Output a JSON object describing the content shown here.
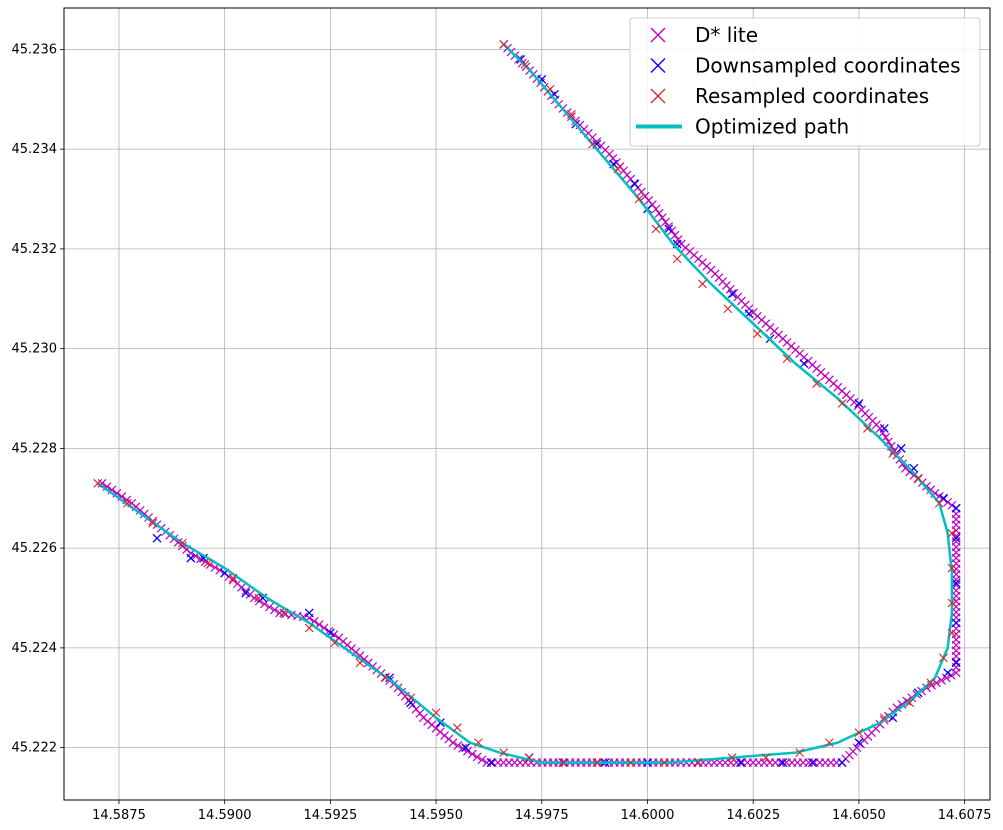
{
  "chart_data": {
    "type": "scatter",
    "xlim": [
      14.5862,
      14.6081
    ],
    "ylim": [
      45.22095,
      45.23683
    ],
    "xticks": [
      "14.5875",
      "14.5900",
      "14.5925",
      "14.5950",
      "14.5975",
      "14.6000",
      "14.6025",
      "14.6050",
      "14.6075"
    ],
    "yticks": [
      "45.222",
      "45.224",
      "45.226",
      "45.228",
      "45.230",
      "45.232",
      "45.234",
      "45.236"
    ],
    "grid": true,
    "legend_position": "top-right",
    "series": [
      {
        "name": "D* lite",
        "marker": "x",
        "color": "#bf00bf",
        "kind": "dense_markers",
        "points": [
          [
            14.5871,
            45.2273
          ],
          [
            14.5878,
            45.2269
          ],
          [
            14.5885,
            45.2264
          ],
          [
            14.5892,
            45.2259
          ],
          [
            14.59,
            45.2255
          ],
          [
            14.5907,
            45.225
          ],
          [
            14.5913,
            45.2247
          ],
          [
            14.592,
            45.2246
          ],
          [
            14.5927,
            45.2242
          ],
          [
            14.5934,
            45.2237
          ],
          [
            14.5941,
            45.2232
          ],
          [
            14.5947,
            45.2226
          ],
          [
            14.5954,
            45.2221
          ],
          [
            14.5962,
            45.2217
          ],
          [
            14.6,
            45.2217
          ],
          [
            14.6046,
            45.2217
          ],
          [
            14.6053,
            45.2223
          ],
          [
            14.6059,
            45.2228
          ],
          [
            14.6066,
            45.2232
          ],
          [
            14.6073,
            45.2235
          ],
          [
            14.6073,
            45.2245
          ],
          [
            14.6073,
            45.2258
          ],
          [
            14.6073,
            45.2268
          ],
          [
            14.6068,
            45.2271
          ],
          [
            14.6061,
            45.2276
          ],
          [
            14.6055,
            45.2284
          ],
          [
            14.6048,
            45.229
          ],
          [
            14.604,
            45.2296
          ],
          [
            14.6032,
            45.2302
          ],
          [
            14.6024,
            45.2308
          ],
          [
            14.6016,
            45.2315
          ],
          [
            14.6008,
            45.2321
          ],
          [
            14.6002,
            45.2328
          ],
          [
            14.5996,
            45.2334
          ],
          [
            14.5991,
            45.2339
          ],
          [
            14.5985,
            45.2344
          ],
          [
            14.5979,
            45.2349
          ],
          [
            14.5973,
            45.2355
          ],
          [
            14.5966,
            45.2361
          ]
        ]
      },
      {
        "name": "Downsampled coordinates",
        "marker": "x",
        "color": "#0000ff",
        "kind": "markers",
        "points": [
          [
            14.5884,
            45.2262
          ],
          [
            14.5892,
            45.2258
          ],
          [
            14.5895,
            45.2258
          ],
          [
            14.59,
            45.2255
          ],
          [
            14.5905,
            45.2251
          ],
          [
            14.5909,
            45.225
          ],
          [
            14.5914,
            45.2247
          ],
          [
            14.592,
            45.2247
          ],
          [
            14.5925,
            45.2243
          ],
          [
            14.5939,
            45.2234
          ],
          [
            14.5944,
            45.2229
          ],
          [
            14.5951,
            45.2225
          ],
          [
            14.5957,
            45.222
          ],
          [
            14.5963,
            45.2217
          ],
          [
            14.5972,
            45.2218
          ],
          [
            14.598,
            45.2217
          ],
          [
            14.599,
            45.2217
          ],
          [
            14.6,
            45.2217
          ],
          [
            14.6012,
            45.2217
          ],
          [
            14.6022,
            45.2217
          ],
          [
            14.6032,
            45.2217
          ],
          [
            14.6039,
            45.2217
          ],
          [
            14.6046,
            45.2217
          ],
          [
            14.605,
            45.2221
          ],
          [
            14.6058,
            45.2226
          ],
          [
            14.6064,
            45.2231
          ],
          [
            14.6071,
            45.2235
          ],
          [
            14.6073,
            45.2237
          ],
          [
            14.6073,
            45.2245
          ],
          [
            14.6073,
            45.2253
          ],
          [
            14.6073,
            45.2262
          ],
          [
            14.6073,
            45.2268
          ],
          [
            14.607,
            45.227
          ],
          [
            14.6063,
            45.2276
          ],
          [
            14.606,
            45.228
          ],
          [
            14.6056,
            45.2284
          ],
          [
            14.605,
            45.2289
          ],
          [
            14.6037,
            45.2297
          ],
          [
            14.6029,
            45.2302
          ],
          [
            14.6024,
            45.2307
          ],
          [
            14.602,
            45.2311
          ],
          [
            14.6007,
            45.2321
          ],
          [
            14.6005,
            45.2324
          ],
          [
            14.6,
            45.2328
          ],
          [
            14.5997,
            45.2333
          ],
          [
            14.5992,
            45.2337
          ],
          [
            14.5988,
            45.2341
          ],
          [
            14.5983,
            45.2345
          ],
          [
            14.5978,
            45.2351
          ],
          [
            14.5975,
            45.2354
          ],
          [
            14.597,
            45.2358
          ]
        ]
      },
      {
        "name": "Resampled coordinates",
        "marker": "x",
        "color": "#d62728",
        "kind": "markers",
        "points": [
          [
            14.587,
            45.2273
          ],
          [
            14.5877,
            45.2269
          ],
          [
            14.5883,
            45.2265
          ],
          [
            14.589,
            45.2261
          ],
          [
            14.5896,
            45.2257
          ],
          [
            14.5902,
            45.2254
          ],
          [
            14.5908,
            45.225
          ],
          [
            14.5914,
            45.2247
          ],
          [
            14.592,
            45.2244
          ],
          [
            14.5926,
            45.2241
          ],
          [
            14.5932,
            45.2237
          ],
          [
            14.5938,
            45.2234
          ],
          [
            14.5944,
            45.223
          ],
          [
            14.595,
            45.2227
          ],
          [
            14.5955,
            45.2224
          ],
          [
            14.596,
            45.2221
          ],
          [
            14.5966,
            45.2219
          ],
          [
            14.5972,
            45.2218
          ],
          [
            14.598,
            45.2217
          ],
          [
            14.5988,
            45.2217
          ],
          [
            14.5996,
            45.2217
          ],
          [
            14.6004,
            45.2217
          ],
          [
            14.6012,
            45.2217
          ],
          [
            14.602,
            45.2218
          ],
          [
            14.6028,
            45.2218
          ],
          [
            14.6036,
            45.2219
          ],
          [
            14.6043,
            45.2221
          ],
          [
            14.605,
            45.2223
          ],
          [
            14.6056,
            45.2226
          ],
          [
            14.6062,
            45.2229
          ],
          [
            14.6067,
            45.2233
          ],
          [
            14.607,
            45.2238
          ],
          [
            14.6072,
            45.2243
          ],
          [
            14.6072,
            45.2249
          ],
          [
            14.6072,
            45.2256
          ],
          [
            14.6072,
            45.2263
          ],
          [
            14.6069,
            45.2269
          ],
          [
            14.6064,
            45.2274
          ],
          [
            14.6058,
            45.2279
          ],
          [
            14.6052,
            45.2284
          ],
          [
            14.6046,
            45.2289
          ],
          [
            14.604,
            45.2293
          ],
          [
            14.6033,
            45.2298
          ],
          [
            14.6026,
            45.2303
          ],
          [
            14.6019,
            45.2308
          ],
          [
            14.6013,
            45.2313
          ],
          [
            14.6007,
            45.2318
          ],
          [
            14.6002,
            45.2324
          ],
          [
            14.5998,
            45.233
          ],
          [
            14.5993,
            45.2336
          ],
          [
            14.5987,
            45.2341
          ],
          [
            14.5982,
            45.2347
          ],
          [
            14.5977,
            45.2352
          ],
          [
            14.5971,
            45.2357
          ],
          [
            14.5966,
            45.2361
          ]
        ]
      },
      {
        "name": "Optimized path",
        "color": "#00bfbf",
        "kind": "line",
        "points": [
          [
            14.587,
            45.2273
          ],
          [
            14.588,
            45.2267
          ],
          [
            14.589,
            45.2261
          ],
          [
            14.59,
            45.2256
          ],
          [
            14.591,
            45.225
          ],
          [
            14.592,
            45.2245
          ],
          [
            14.593,
            45.2239
          ],
          [
            14.594,
            45.2233
          ],
          [
            14.595,
            45.2226
          ],
          [
            14.5958,
            45.2221
          ],
          [
            14.5965,
            45.2219
          ],
          [
            14.5975,
            45.2217
          ],
          [
            14.599,
            45.2217
          ],
          [
            14.6005,
            45.2217
          ],
          [
            14.602,
            45.2218
          ],
          [
            14.6035,
            45.2219
          ],
          [
            14.6045,
            45.2221
          ],
          [
            14.6055,
            45.2225
          ],
          [
            14.6063,
            45.223
          ],
          [
            14.6068,
            45.2234
          ],
          [
            14.6071,
            45.224
          ],
          [
            14.6072,
            45.2247
          ],
          [
            14.6072,
            45.2255
          ],
          [
            14.6071,
            45.2263
          ],
          [
            14.6069,
            45.2269
          ],
          [
            14.6063,
            45.2275
          ],
          [
            14.6055,
            45.2282
          ],
          [
            14.6045,
            45.229
          ],
          [
            14.6035,
            45.2297
          ],
          [
            14.6025,
            45.2305
          ],
          [
            14.6015,
            45.2313
          ],
          [
            14.6006,
            45.2321
          ],
          [
            14.5998,
            45.233
          ],
          [
            14.599,
            45.2338
          ],
          [
            14.598,
            45.2348
          ],
          [
            14.5972,
            45.2356
          ],
          [
            14.5966,
            45.2361
          ]
        ]
      }
    ]
  }
}
